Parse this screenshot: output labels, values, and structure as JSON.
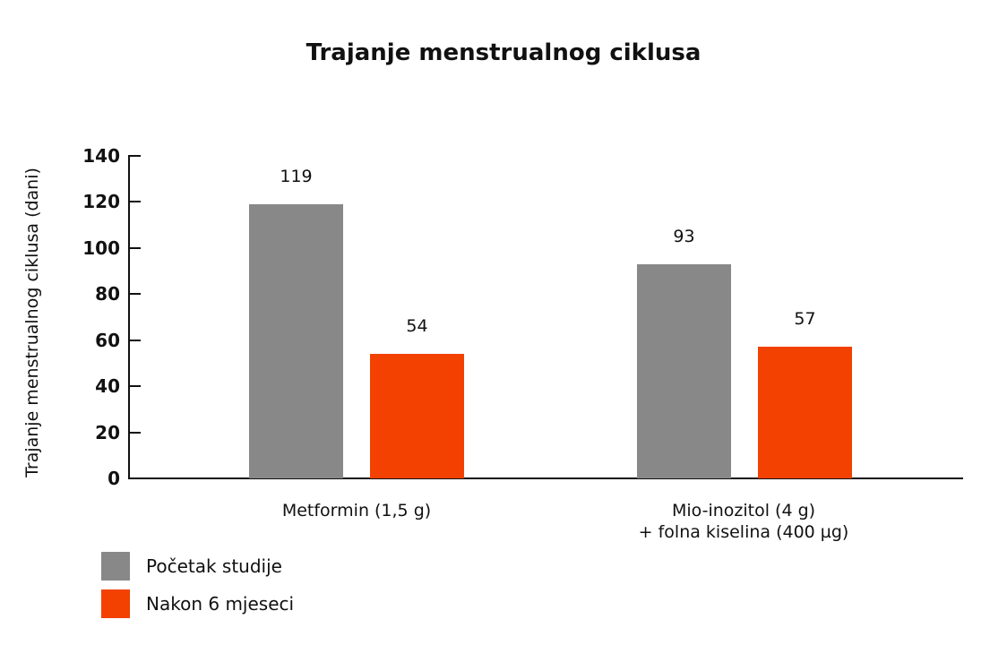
{
  "chart_data": {
    "type": "bar",
    "title": "Trajanje menstrualnog ciklusa",
    "xlabel": "",
    "ylabel": "Trajanje menstrualnog ciklusa (dani)",
    "ylim": [
      0,
      140
    ],
    "yticks": [
      "0",
      "20",
      "40",
      "60",
      "80",
      "100",
      "120",
      "140"
    ],
    "categories": [
      "Metformin (1,5 g)",
      "Mio-inozitol (4 g)\n+ folna kiselina (400 µg)"
    ],
    "category_lines": [
      [
        "Metformin (1,5 g)"
      ],
      [
        "Mio-inozitol (4 g)",
        "+ folna kiselina (400 µg)"
      ]
    ],
    "series": [
      {
        "name": "Početak studije",
        "color": "#888888",
        "values": [
          119,
          93
        ],
        "labels": [
          "119",
          "93"
        ]
      },
      {
        "name": "Nakon 6 mjeseci",
        "color": "#f24100",
        "values": [
          54,
          57
        ],
        "labels": [
          "54",
          "57"
        ]
      }
    ],
    "grid": false,
    "legend_position": "bottom-left"
  }
}
